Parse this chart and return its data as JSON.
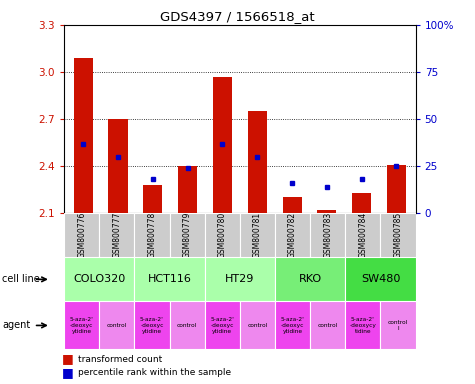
{
  "title": "GDS4397 / 1566518_at",
  "samples": [
    "GSM800776",
    "GSM800777",
    "GSM800778",
    "GSM800779",
    "GSM800780",
    "GSM800781",
    "GSM800782",
    "GSM800783",
    "GSM800784",
    "GSM800785"
  ],
  "transformed_counts": [
    3.09,
    2.7,
    2.28,
    2.4,
    2.97,
    2.75,
    2.2,
    2.12,
    2.23,
    2.41
  ],
  "percentile_ranks": [
    37,
    30,
    18,
    24,
    37,
    30,
    16,
    14,
    18,
    25
  ],
  "ylim": [
    2.1,
    3.3
  ],
  "yticks": [
    2.1,
    2.4,
    2.7,
    3.0,
    3.3
  ],
  "y2lim": [
    0,
    100
  ],
  "y2ticks": [
    0,
    25,
    50,
    75,
    100
  ],
  "cell_lines": [
    {
      "name": "COLO320",
      "start": 0,
      "end": 2,
      "color": "#aaffaa"
    },
    {
      "name": "HCT116",
      "start": 2,
      "end": 4,
      "color": "#aaffaa"
    },
    {
      "name": "HT29",
      "start": 4,
      "end": 6,
      "color": "#aaffaa"
    },
    {
      "name": "RKO",
      "start": 6,
      "end": 8,
      "color": "#77ee77"
    },
    {
      "name": "SW480",
      "start": 8,
      "end": 10,
      "color": "#44dd44"
    }
  ],
  "agents": [
    {
      "name": "5-aza-2'\n-deoxyc\nytidine",
      "color": "#ee44ee"
    },
    {
      "name": "control",
      "color": "#ee88ee"
    },
    {
      "name": "5-aza-2'\n-deoxyc\nytidine",
      "color": "#ee44ee"
    },
    {
      "name": "control",
      "color": "#ee88ee"
    },
    {
      "name": "5-aza-2'\n-deoxyc\nytidine",
      "color": "#ee44ee"
    },
    {
      "name": "control",
      "color": "#ee88ee"
    },
    {
      "name": "5-aza-2'\n-deoxyc\nytidine",
      "color": "#ee44ee"
    },
    {
      "name": "control",
      "color": "#ee88ee"
    },
    {
      "name": "5-aza-2'\n-deoxycy\ntidine",
      "color": "#ee44ee"
    },
    {
      "name": "control\nl",
      "color": "#ee88ee"
    }
  ],
  "bar_color": "#cc1100",
  "dot_color": "#0000cc",
  "bar_width": 0.55,
  "baseline": 2.1,
  "sample_bg_color": "#cccccc",
  "left_tick_color": "#cc1100",
  "right_tick_color": "#0000cc"
}
